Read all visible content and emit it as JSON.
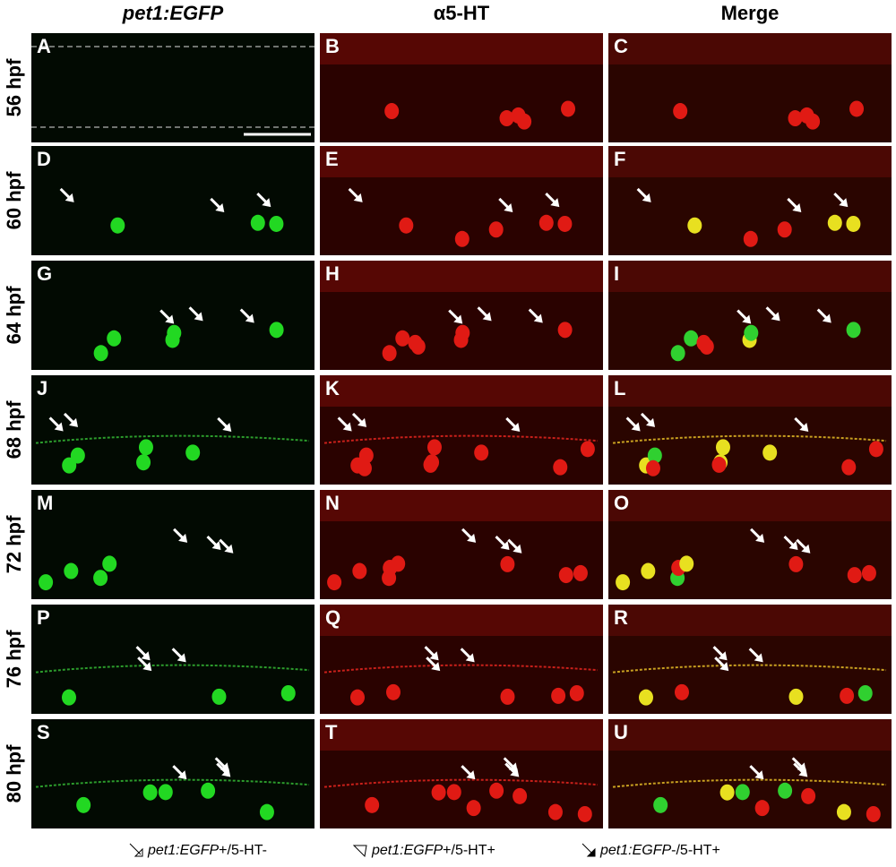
{
  "columns": [
    {
      "label": "pet1:EGFP",
      "italic": true
    },
    {
      "label": "α5-HT",
      "italic": false
    },
    {
      "label": "Merge",
      "italic": false
    }
  ],
  "rows": [
    {
      "label": "56 hpf",
      "panels": [
        "A",
        "B",
        "C"
      ]
    },
    {
      "label": "60 hpf",
      "panels": [
        "D",
        "E",
        "F"
      ]
    },
    {
      "label": "64 hpf",
      "panels": [
        "G",
        "H",
        "I"
      ]
    },
    {
      "label": "68 hpf",
      "panels": [
        "J",
        "K",
        "L"
      ]
    },
    {
      "label": "72 hpf",
      "panels": [
        "M",
        "N",
        "O"
      ]
    },
    {
      "label": "76 hpf",
      "panels": [
        "P",
        "Q",
        "R"
      ]
    },
    {
      "label": "80 hpf",
      "panels": [
        "S",
        "T",
        "U"
      ]
    }
  ],
  "legend": [
    {
      "italic": "pet1:EGFP",
      "rest": "+/5-HT-"
    },
    {
      "italic": "pet1:EGFP",
      "rest": "+/5-HT+"
    },
    {
      "italic": "pet1:EGFP",
      "rest": "-/5-HT+"
    }
  ]
}
